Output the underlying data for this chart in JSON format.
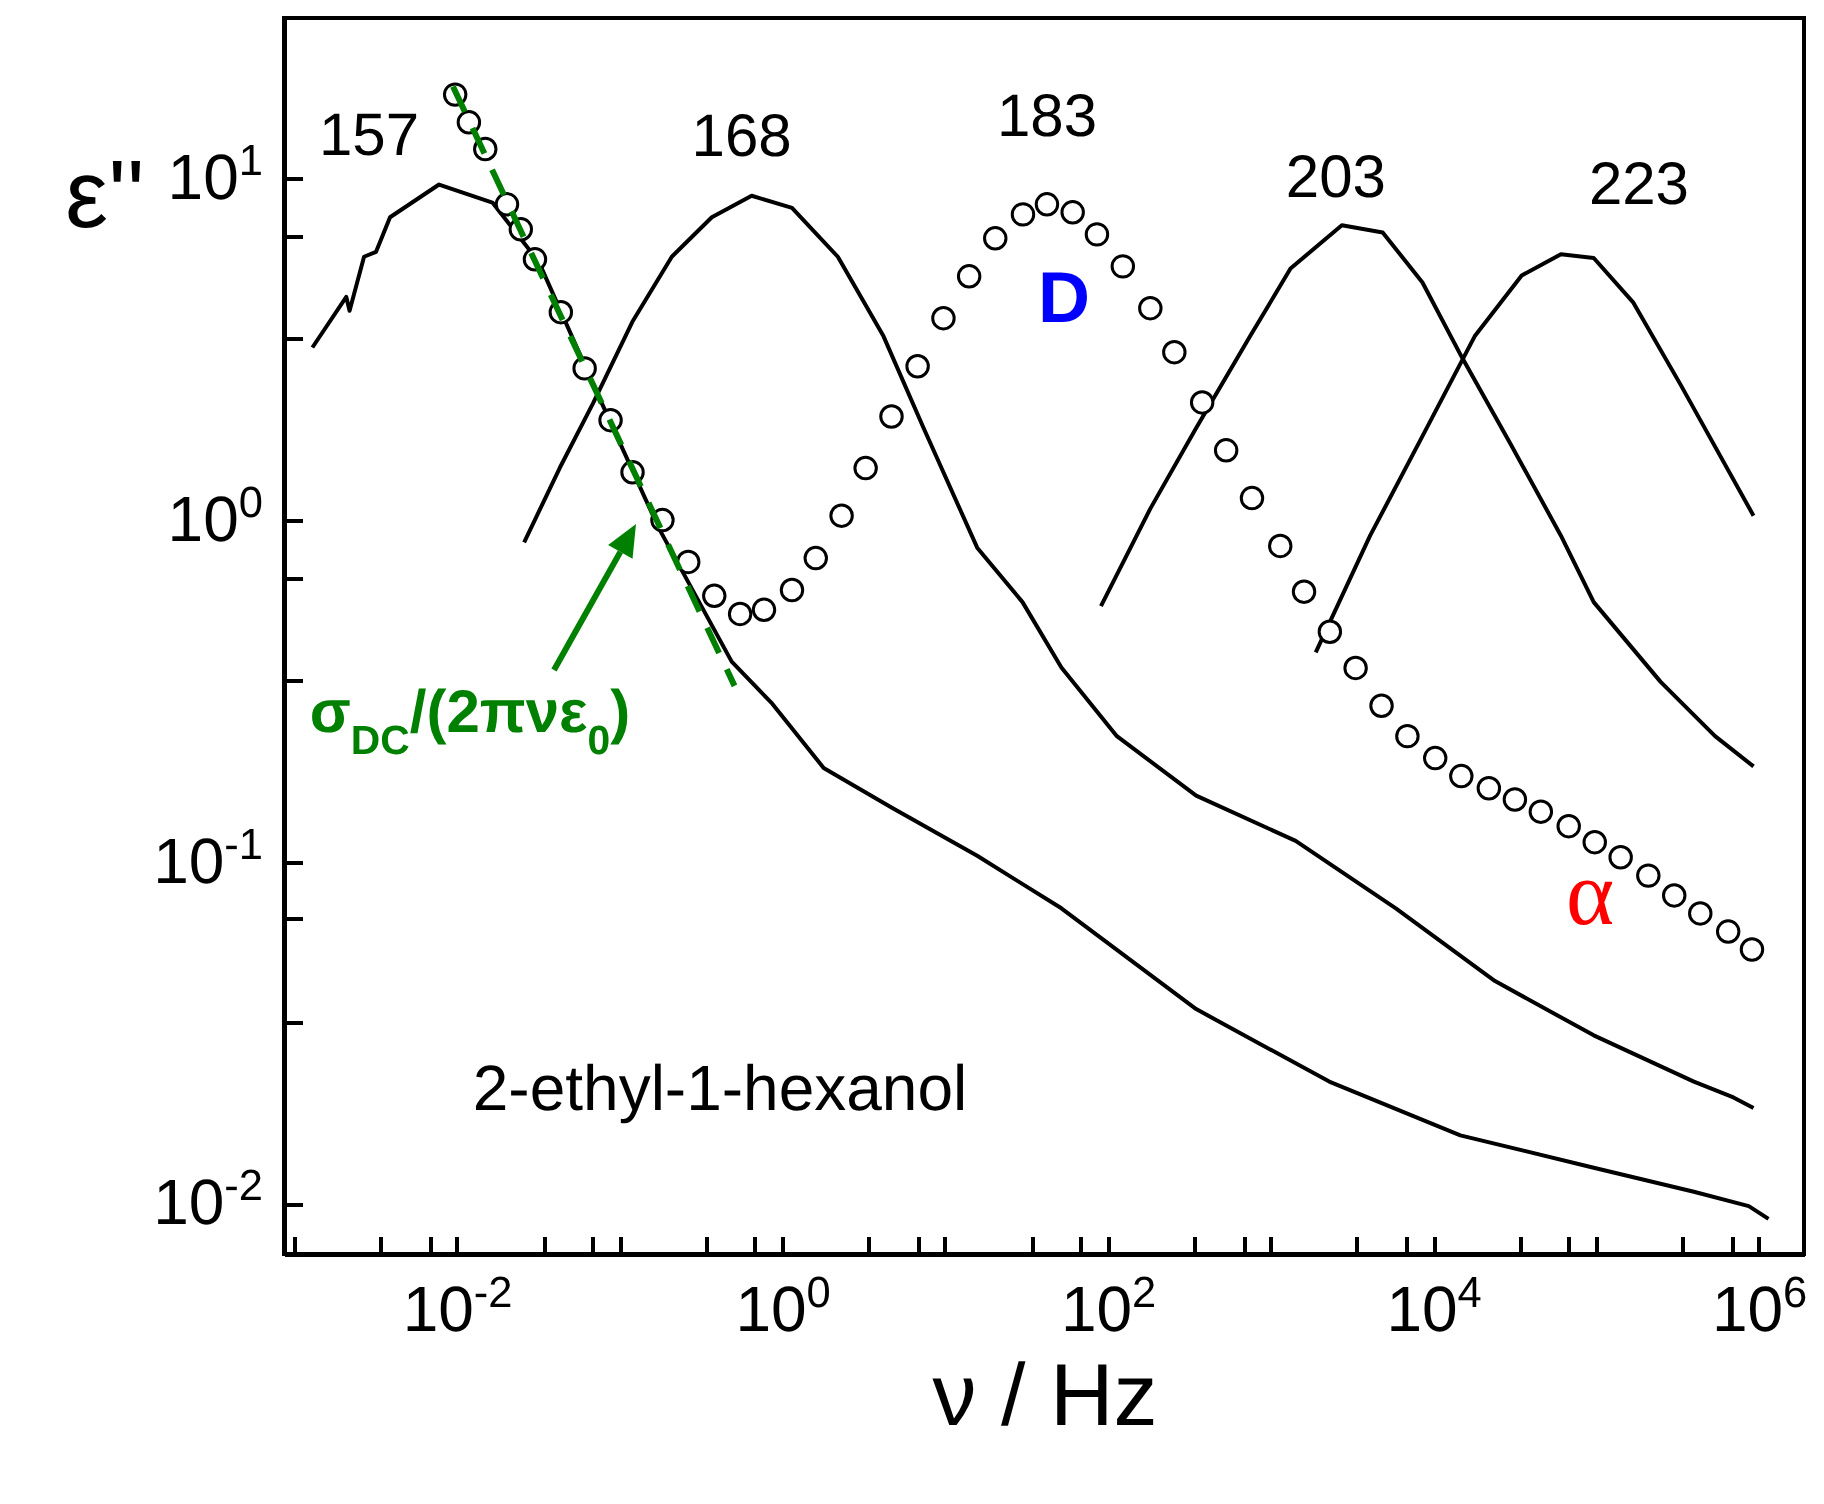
{
  "chart_data": {
    "type": "line",
    "xlabel": "ν / Hz",
    "ylabel": "ε''",
    "log": "xy",
    "grid": false,
    "line_style": "solid",
    "marker": "none",
    "xlim": [
      0.00087,
      1900000
    ],
    "ylim": [
      0.0071,
      29.5
    ],
    "xticks": [
      {
        "value": 0.001,
        "label": null
      },
      {
        "value": 0.0034,
        "label": null
      },
      {
        "value": 0.0068,
        "label": null
      },
      {
        "value": 0.01,
        "label": "10$^{-2}$"
      },
      {
        "value": 0.034,
        "label": null
      },
      {
        "value": 0.068,
        "label": null
      },
      {
        "value": 0.1,
        "label": null
      },
      {
        "value": 0.34,
        "label": null
      },
      {
        "value": 0.68,
        "label": null
      },
      {
        "value": 1,
        "label": "10$^{0}$"
      },
      {
        "value": 3.4,
        "label": null
      },
      {
        "value": 6.8,
        "label": null
      },
      {
        "value": 10,
        "label": null
      },
      {
        "value": 34,
        "label": null
      },
      {
        "value": 68,
        "label": null
      },
      {
        "value": 100,
        "label": "10$^{2}$"
      },
      {
        "value": 340,
        "label": null
      },
      {
        "value": 680,
        "label": null
      },
      {
        "value": 1000,
        "label": null
      },
      {
        "value": 3400,
        "label": null
      },
      {
        "value": 6800,
        "label": null
      },
      {
        "value": 10000,
        "label": "10$^{4}$"
      },
      {
        "value": 34000,
        "label": null
      },
      {
        "value": 68000,
        "label": null
      },
      {
        "value": 100000,
        "label": null
      },
      {
        "value": 340000,
        "label": null
      },
      {
        "value": 680000,
        "label": null
      },
      {
        "value": 1000000,
        "label": "10$^{6}$"
      }
    ],
    "yticks": [
      {
        "value": 0.01,
        "label": "10$^{-2}$"
      },
      {
        "value": 0.034,
        "label": null
      },
      {
        "value": 0.068,
        "label": null
      },
      {
        "value": 0.1,
        "label": "10$^{-1}$"
      },
      {
        "value": 0.34,
        "label": null
      },
      {
        "value": 0.68,
        "label": null
      },
      {
        "value": 1,
        "label": "10$^{0}$"
      },
      {
        "value": 3.4,
        "label": null
      },
      {
        "value": 6.8,
        "label": null
      },
      {
        "value": 10,
        "label": "10$^{1}$"
      }
    ],
    "series": [
      {
        "name": "157",
        "color": "#000000",
        "x": [
          0.0013,
          0.0021,
          0.0022,
          0.0027,
          0.0032,
          0.0039,
          0.0078,
          0.0166,
          0.032,
          0.069,
          0.174,
          0.49,
          0.87,
          1.8,
          4.7,
          15.8,
          52,
          350,
          2300,
          14700,
          97000,
          400000,
          870000,
          1150000
        ],
        "values": [
          3.2,
          4.5,
          4.1,
          5.9,
          6.1,
          7.7,
          9.6,
          8.5,
          5.7,
          2.5,
          0.95,
          0.385,
          0.29,
          0.188,
          0.144,
          0.104,
          0.073,
          0.037,
          0.0227,
          0.0158,
          0.0127,
          0.0108,
          0.0098,
          0.009
        ]
      },
      {
        "name": "168",
        "color": "#000000",
        "x": [
          0.026,
          0.043,
          0.069,
          0.12,
          0.21,
          0.37,
          0.65,
          1.15,
          2.2,
          4.2,
          7.4,
          15.8,
          30,
          52,
          114,
          350,
          1430,
          5900,
          24000,
          97000,
          400000,
          700000,
          930000
        ],
        "values": [
          0.86,
          1.42,
          2.2,
          3.8,
          5.9,
          7.7,
          8.9,
          8.2,
          5.9,
          3.45,
          1.86,
          0.83,
          0.575,
          0.37,
          0.233,
          0.156,
          0.115,
          0.073,
          0.0447,
          0.031,
          0.0227,
          0.0204,
          0.019
        ]
      },
      {
        "name": "203",
        "color": "#000000",
        "x": [
          91,
          183,
          350,
          750,
          1330,
          2750,
          4900,
          8600,
          15000,
          29500,
          61000,
          97000,
          250000,
          540000,
          930000
        ],
        "values": [
          0.56,
          1.08,
          1.86,
          3.45,
          5.45,
          7.3,
          6.95,
          4.96,
          3.0,
          1.69,
          0.9,
          0.575,
          0.336,
          0.233,
          0.19
        ]
      },
      {
        "name": "223",
        "color": "#000000",
        "x": [
          1900,
          4100,
          8600,
          18000,
          35000,
          61000,
          97000,
          170000,
          330000,
          930000
        ],
        "values": [
          0.41,
          0.9,
          1.76,
          3.45,
          5.2,
          6.0,
          5.85,
          4.33,
          2.5,
          1.03
        ]
      },
      {
        "name": "183",
        "type": "scatter",
        "marker": "circle",
        "color": "#000000",
        "x": [
          0.0098,
          0.0119,
          0.015,
          0.0204,
          0.0248,
          0.0303,
          0.0437,
          0.0612,
          0.0883,
          0.1205,
          0.184,
          0.265,
          0.383,
          0.552,
          0.774,
          1.15,
          1.61,
          2.32,
          3.26,
          4.7,
          6.8,
          9.8,
          14.1,
          20.4,
          30.2,
          42.4,
          61,
          86,
          124,
          183,
          257,
          381,
          535,
          771,
          1150,
          1610,
          2320,
          3340,
          4820,
          6950,
          10300,
          14900,
          22000,
          31800,
          45900,
          68100,
          98400,
          142000,
          210000,
          303000,
          438000,
          650000,
          910000
        ],
        "values": [
          17.6,
          14.6,
          12.2,
          8.4,
          7.1,
          5.8,
          4.06,
          2.78,
          1.96,
          1.38,
          1.0,
          0.754,
          0.6,
          0.531,
          0.546,
          0.624,
          0.774,
          1.03,
          1.42,
          2.01,
          2.82,
          3.9,
          5.17,
          6.68,
          7.85,
          8.4,
          7.96,
          6.86,
          5.53,
          4.17,
          3.1,
          2.21,
          1.6,
          1.16,
          0.84,
          0.617,
          0.471,
          0.369,
          0.286,
          0.233,
          0.201,
          0.178,
          0.164,
          0.152,
          0.14,
          0.127,
          0.114,
          0.103,
          0.091,
          0.0796,
          0.0705,
          0.0624,
          0.0553
        ]
      },
      {
        "color": "#008000",
        "line_style": "dashed",
        "x": [
          0.0095,
          0.51
        ],
        "values": [
          18.6,
          0.327
        ]
      }
    ],
    "annotations": [
      "D",
      "α",
      "σ$_{DC}$/(2πνε$_{0}$)",
      "2-ethyl-1-hexanol"
    ]
  }
}
